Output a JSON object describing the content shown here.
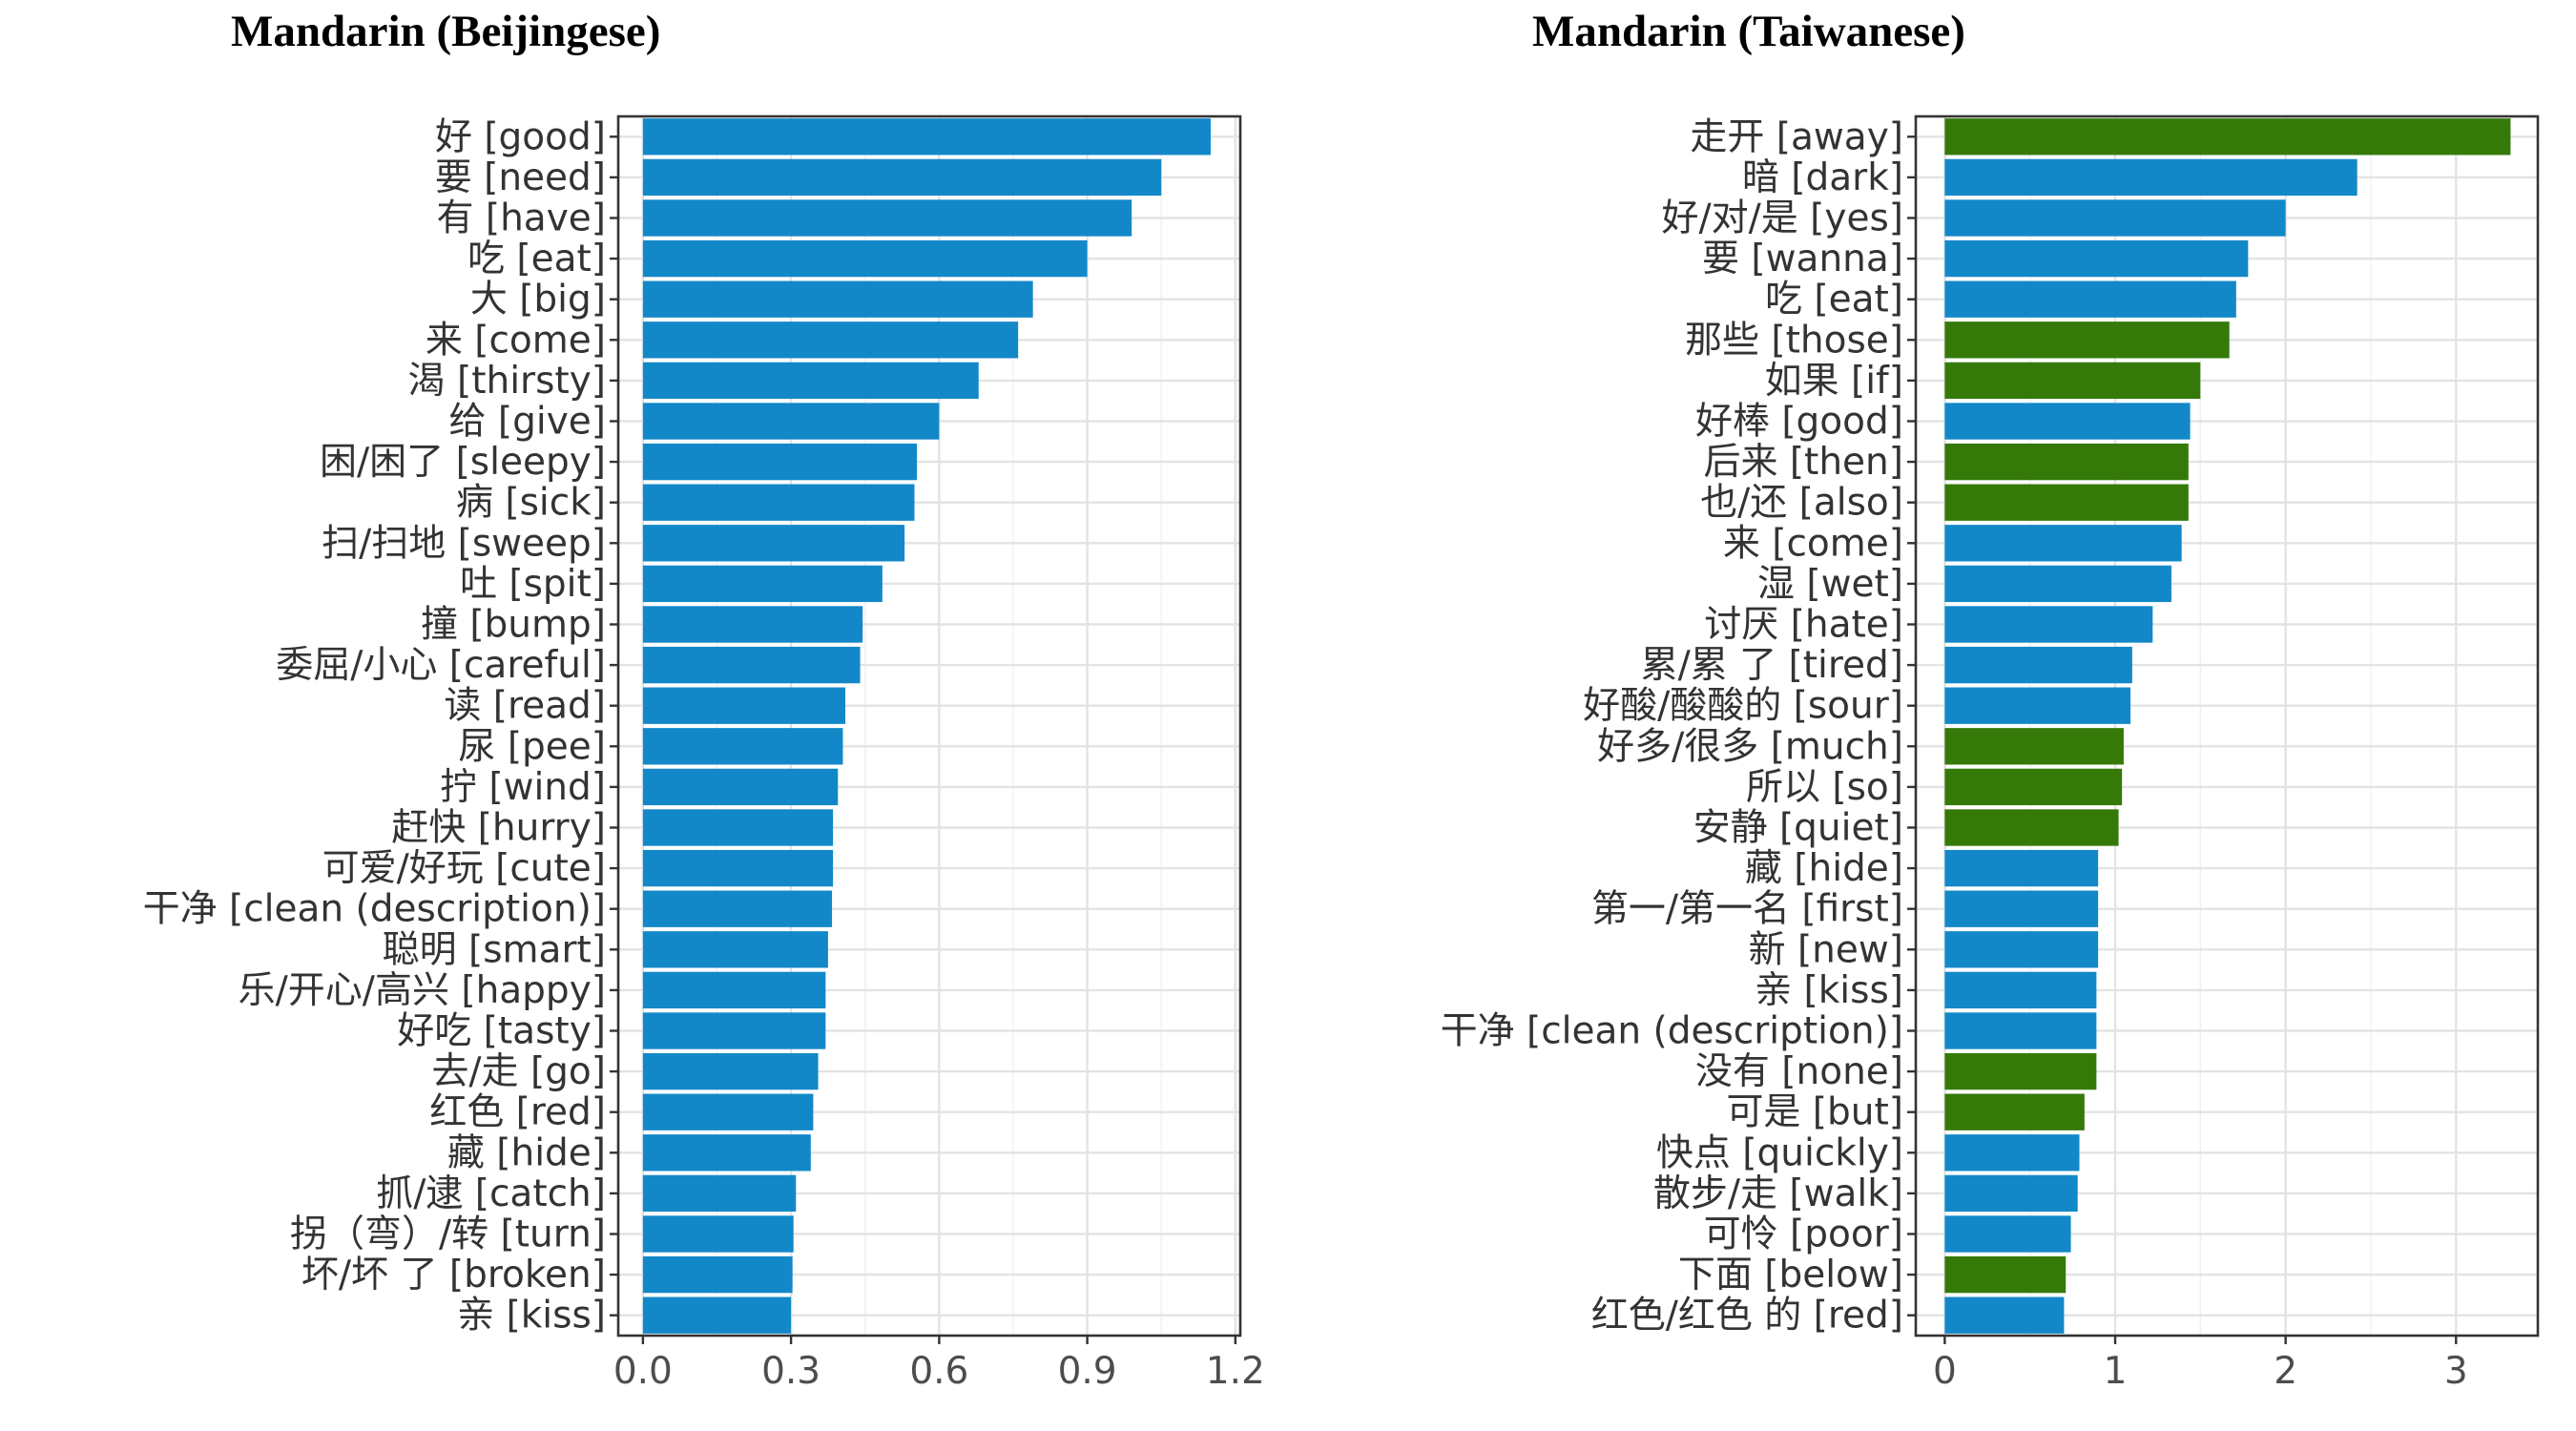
{
  "colors": {
    "blue": "#1388c8",
    "green": "#357a09"
  },
  "chart_data": [
    {
      "type": "bar",
      "orientation": "horizontal",
      "title": "Mandarin (Beijingese)",
      "xlim": [
        -0.05,
        1.21
      ],
      "ticks": [
        0,
        0.3,
        0.6,
        0.9,
        1.2
      ],
      "tick_labels": [
        "0.0",
        "0.3",
        "0.6",
        "0.9",
        "1.2"
      ],
      "grid": true,
      "categories": [
        "好 [good]",
        "要 [need]",
        "有 [have]",
        "吃 [eat]",
        "大 [big]",
        "来 [come]",
        "渴 [thirsty]",
        "给 [give]",
        "困/困了 [sleepy]",
        "病 [sick]",
        "扫/扫地 [sweep]",
        "吐 [spit]",
        "撞 [bump]",
        "委屈/小心 [careful]",
        "读 [read]",
        "尿 [pee]",
        "拧 [wind]",
        "赶快 [hurry]",
        "可爱/好玩 [cute]",
        "干净 [clean (description)]",
        "聪明 [smart]",
        "乐/开心/高兴 [happy]",
        "好吃 [tasty]",
        "去/走 [go]",
        "红色 [red]",
        "藏 [hide]",
        "抓/逮 [catch]",
        "拐（弯）/转 [turn]",
        "坏/坏 了 [broken]",
        "亲 [kiss]"
      ],
      "values": [
        1.15,
        1.05,
        0.99,
        0.9,
        0.79,
        0.76,
        0.68,
        0.6,
        0.555,
        0.55,
        0.53,
        0.485,
        0.445,
        0.44,
        0.41,
        0.405,
        0.395,
        0.385,
        0.385,
        0.383,
        0.375,
        0.37,
        0.37,
        0.355,
        0.345,
        0.34,
        0.31,
        0.305,
        0.303,
        0.3
      ],
      "colors": [
        "blue",
        "blue",
        "blue",
        "blue",
        "blue",
        "blue",
        "blue",
        "blue",
        "blue",
        "blue",
        "blue",
        "blue",
        "blue",
        "blue",
        "blue",
        "blue",
        "blue",
        "blue",
        "blue",
        "blue",
        "blue",
        "blue",
        "blue",
        "blue",
        "blue",
        "blue",
        "blue",
        "blue",
        "blue",
        "blue"
      ]
    },
    {
      "type": "bar",
      "orientation": "horizontal",
      "title": "Mandarin (Taiwanese)",
      "xlim": [
        -0.17,
        3.48
      ],
      "ticks": [
        0,
        1,
        2,
        3
      ],
      "tick_labels": [
        "0",
        "1",
        "2",
        "3"
      ],
      "grid": true,
      "categories": [
        "走开 [away]",
        "暗 [dark]",
        "好/对/是 [yes]",
        "要 [wanna]",
        "吃 [eat]",
        "那些 [those]",
        "如果 [if]",
        "好棒 [good]",
        "后来 [then]",
        "也/还 [also]",
        "来 [come]",
        "湿 [wet]",
        "讨厌 [hate]",
        "累/累 了 [tired]",
        "好酸/酸酸的 [sour]",
        "好多/很多 [much]",
        "所以 [so]",
        "安静 [quiet]",
        "藏 [hide]",
        "第一/第一名 [first]",
        "新 [new]",
        "亲 [kiss]",
        "干净 [clean (description)]",
        "没有 [none]",
        "可是 [but]",
        "快点 [quickly]",
        "散步/走 [walk]",
        "可怜 [poor]",
        "下面 [below]",
        "红色/红色 的 [red]"
      ],
      "values": [
        3.32,
        2.42,
        2.0,
        1.78,
        1.71,
        1.67,
        1.5,
        1.44,
        1.43,
        1.43,
        1.39,
        1.33,
        1.22,
        1.1,
        1.09,
        1.05,
        1.04,
        1.02,
        0.9,
        0.9,
        0.9,
        0.89,
        0.89,
        0.89,
        0.82,
        0.79,
        0.78,
        0.74,
        0.71,
        0.7
      ],
      "colors": [
        "green",
        "blue",
        "blue",
        "blue",
        "blue",
        "green",
        "green",
        "blue",
        "green",
        "green",
        "blue",
        "blue",
        "blue",
        "blue",
        "blue",
        "green",
        "green",
        "green",
        "blue",
        "blue",
        "blue",
        "blue",
        "blue",
        "green",
        "green",
        "blue",
        "blue",
        "blue",
        "green",
        "blue"
      ]
    }
  ]
}
